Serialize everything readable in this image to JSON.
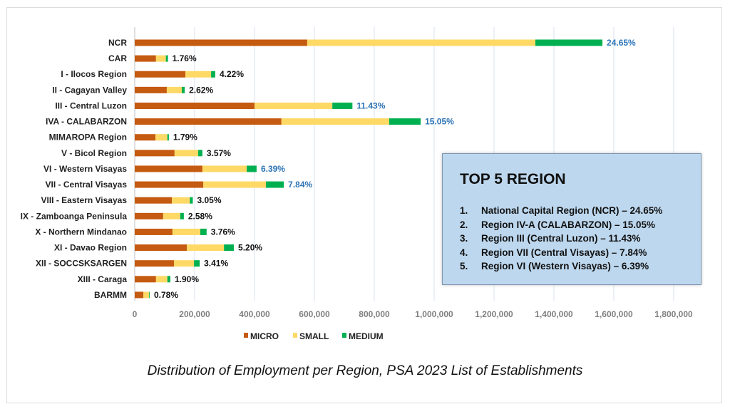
{
  "chart_data": {
    "type": "bar",
    "orientation": "horizontal",
    "stacked": true,
    "title": "Distribution of Employment per Region, PSA 2023 List of Establishments",
    "xlabel": "",
    "ylabel": "",
    "xlim": [
      0,
      1900000
    ],
    "x_ticks": [
      0,
      200000,
      400000,
      600000,
      800000,
      1000000,
      1200000,
      1400000,
      1600000,
      1800000
    ],
    "x_tick_labels": [
      "0",
      "200,000",
      "400,000",
      "600,000",
      "800,000",
      "1,000,000",
      "1,200,000",
      "1,400,000",
      "1,600,000",
      "1,800,000"
    ],
    "grid": true,
    "legend_position": "bottom",
    "categories": [
      "NCR",
      "CAR",
      "I - Ilocos Region",
      "II - Cagayan Valley",
      "III - Central Luzon",
      "IVA - CALABARZON",
      "MIMAROPA Region",
      "V - Bicol Region",
      "VI - Western Visayas",
      "VII - Central Visayas",
      "VIII - Eastern Visayas",
      "IX - Zamboanga Peninsula",
      "X - Northern Mindanao",
      "XI - Davao Region",
      "XII - SOCCSKSARGEN",
      "XIII - Caraga",
      "BARMM"
    ],
    "series": [
      {
        "name": "MICRO",
        "color": "#c55a11",
        "values": [
          576000,
          71000,
          169000,
          107000,
          400000,
          490000,
          69000,
          133000,
          226000,
          229000,
          124000,
          95000,
          126000,
          174000,
          131000,
          71000,
          29000
        ]
      },
      {
        "name": "SMALL",
        "color": "#ffd966",
        "values": [
          762000,
          33000,
          86000,
          50000,
          260000,
          360000,
          40000,
          79000,
          148000,
          209000,
          60000,
          57000,
          93000,
          124000,
          67000,
          38000,
          19000
        ]
      },
      {
        "name": "MEDIUM",
        "color": "#00b050",
        "values": [
          224000,
          7000,
          14000,
          10000,
          67000,
          105000,
          5000,
          14000,
          33000,
          60000,
          10000,
          12000,
          21000,
          33000,
          19000,
          10000,
          2000
        ]
      }
    ],
    "data_labels": [
      "24.65%",
      "1.76%",
      "4.22%",
      "2.62%",
      "11.43%",
      "15.05%",
      "1.79%",
      "3.57%",
      "6.39%",
      "7.84%",
      "3.05%",
      "2.58%",
      "3.76%",
      "5.20%",
      "3.41%",
      "1.90%",
      "0.78%"
    ],
    "highlighted": [
      true,
      false,
      false,
      false,
      true,
      true,
      false,
      false,
      true,
      true,
      false,
      false,
      false,
      false,
      false,
      false,
      false
    ],
    "highlight_color": "#2e75b6",
    "label_color": "#111111"
  },
  "top5": {
    "title": "TOP 5 REGION",
    "items": [
      {
        "num": "1.",
        "text": "National Capital Region (NCR) – 24.65%"
      },
      {
        "num": "2.",
        "text": "Region IV-A (CALABARZON) – 15.05%"
      },
      {
        "num": "3.",
        "text": "Region III (Central Luzon) – 11.43%"
      },
      {
        "num": "4.",
        "text": "Region VII (Central Visayas) – 7.84%"
      },
      {
        "num": "5.",
        "text": "Region VI (Western Visayas) – 6.39%"
      }
    ]
  },
  "caption": "Distribution of Employment per Region, PSA 2023 List of Establishments"
}
